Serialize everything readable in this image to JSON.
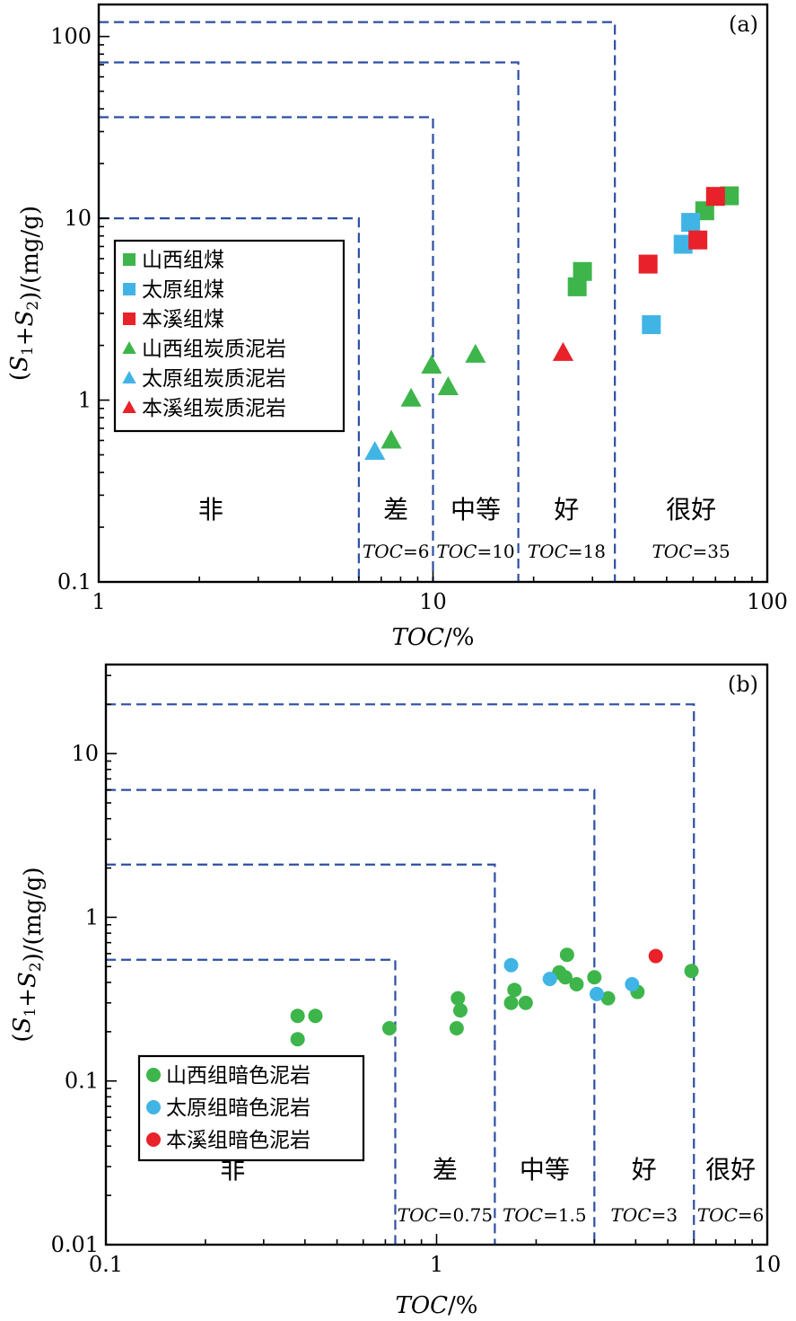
{
  "chart_data": [
    {
      "type": "scatter",
      "panel_label": "(a)",
      "xlabel": "TOC/%",
      "ylabel": "(S1+S2)/(mg/g)",
      "x_scale": "log",
      "y_scale": "log",
      "xlim": [
        1,
        100
      ],
      "ylim": [
        0.1,
        150
      ],
      "x_ticks": [
        1,
        10,
        100
      ],
      "x_tick_labels": [
        "1",
        "10",
        "100"
      ],
      "y_ticks": [
        0.1,
        1,
        10,
        100
      ],
      "y_tick_labels": [
        "0.1",
        "1",
        "10",
        "100"
      ],
      "grid": false,
      "legend_position": "middle-left",
      "grade_zones": [
        {
          "label": "非",
          "toc": "",
          "x_from": 1,
          "x_to": 6,
          "y_to": 0
        },
        {
          "label": "差",
          "toc": "=6",
          "x_from": 6,
          "x_to": 10,
          "y_to": 10
        },
        {
          "label": "中等",
          "toc": "=10",
          "x_from": 10,
          "x_to": 18,
          "y_to": 36
        },
        {
          "label": "好",
          "toc": "=18",
          "x_from": 18,
          "x_to": 35,
          "y_to": 72
        },
        {
          "label": "很好",
          "toc": "=35",
          "x_from": 35,
          "x_to": 100,
          "y_to": 120
        }
      ],
      "series": [
        {
          "name": "山西组煤",
          "marker": "square",
          "color": "#3DB54A",
          "points": [
            [
              27,
              4.2
            ],
            [
              28,
              5.1
            ],
            [
              65,
              11
            ],
            [
              77,
              13.3
            ]
          ]
        },
        {
          "name": "太原组煤",
          "marker": "square",
          "color": "#41B4E6",
          "points": [
            [
              45,
              2.6
            ],
            [
              56,
              7.2
            ],
            [
              59,
              9.5
            ]
          ]
        },
        {
          "name": "本溪组煤",
          "marker": "square",
          "color": "#E8212A",
          "points": [
            [
              44,
              5.6
            ],
            [
              62,
              7.6
            ],
            [
              70,
              13.2
            ]
          ]
        },
        {
          "name": "山西组炭质泥岩",
          "marker": "triangle",
          "color": "#3DB54A",
          "points": [
            [
              7.5,
              0.6
            ],
            [
              8.6,
              1.02
            ],
            [
              9.9,
              1.55
            ],
            [
              11.1,
              1.18
            ],
            [
              13.4,
              1.78
            ]
          ]
        },
        {
          "name": "太原组炭质泥岩",
          "marker": "triangle",
          "color": "#41B4E6",
          "points": [
            [
              6.7,
              0.52
            ]
          ]
        },
        {
          "name": "本溪组炭质泥岩",
          "marker": "triangle",
          "color": "#E8212A",
          "points": [
            [
              24.5,
              1.82
            ]
          ]
        }
      ]
    },
    {
      "type": "scatter",
      "panel_label": "(b)",
      "xlabel": "TOC/%",
      "ylabel": "(S1+S2)/(mg/g)",
      "x_scale": "log",
      "y_scale": "log",
      "xlim": [
        0.1,
        10
      ],
      "ylim": [
        0.01,
        35
      ],
      "x_ticks": [
        0.1,
        1,
        10
      ],
      "x_tick_labels": [
        "0.1",
        "1",
        "10"
      ],
      "y_ticks": [
        0.01,
        0.1,
        1,
        10
      ],
      "y_tick_labels": [
        "0.01",
        "0.1",
        "1",
        "10"
      ],
      "grid": false,
      "legend_position": "bottom-left",
      "grade_zones": [
        {
          "label": "非",
          "toc": "",
          "x_from": 0.1,
          "x_to": 0.75,
          "y_to": 0
        },
        {
          "label": "差",
          "toc": "=0.75",
          "x_from": 0.75,
          "x_to": 1.5,
          "y_to": 0.55
        },
        {
          "label": "中等",
          "toc": "=1.5",
          "x_from": 1.5,
          "x_to": 3,
          "y_to": 2.1
        },
        {
          "label": "好",
          "toc": "=3",
          "x_from": 3,
          "x_to": 6,
          "y_to": 6
        },
        {
          "label": "很好",
          "toc": "=6",
          "x_from": 6,
          "x_to": 10,
          "y_to": 20
        }
      ],
      "series": [
        {
          "name": "山西组暗色泥岩",
          "marker": "circle",
          "color": "#3DB54A",
          "points": [
            [
              0.38,
              0.18
            ],
            [
              0.38,
              0.25
            ],
            [
              0.43,
              0.25
            ],
            [
              0.72,
              0.21
            ],
            [
              1.15,
              0.21
            ],
            [
              1.16,
              0.32
            ],
            [
              1.18,
              0.27
            ],
            [
              1.68,
              0.3
            ],
            [
              1.72,
              0.36
            ],
            [
              1.86,
              0.3
            ],
            [
              2.35,
              0.46
            ],
            [
              2.45,
              0.43
            ],
            [
              2.48,
              0.59
            ],
            [
              2.65,
              0.39
            ],
            [
              3.0,
              0.43
            ],
            [
              3.3,
              0.32
            ],
            [
              4.05,
              0.35
            ],
            [
              5.9,
              0.47
            ]
          ]
        },
        {
          "name": "太原组暗色泥岩",
          "marker": "circle",
          "color": "#41B4E6",
          "points": [
            [
              1.68,
              0.51
            ],
            [
              2.2,
              0.42
            ],
            [
              3.05,
              0.34
            ],
            [
              3.9,
              0.39
            ]
          ]
        },
        {
          "name": "本溪组暗色泥岩",
          "marker": "circle",
          "color": "#E8212A",
          "points": [
            [
              4.6,
              0.58
            ]
          ]
        }
      ]
    }
  ]
}
